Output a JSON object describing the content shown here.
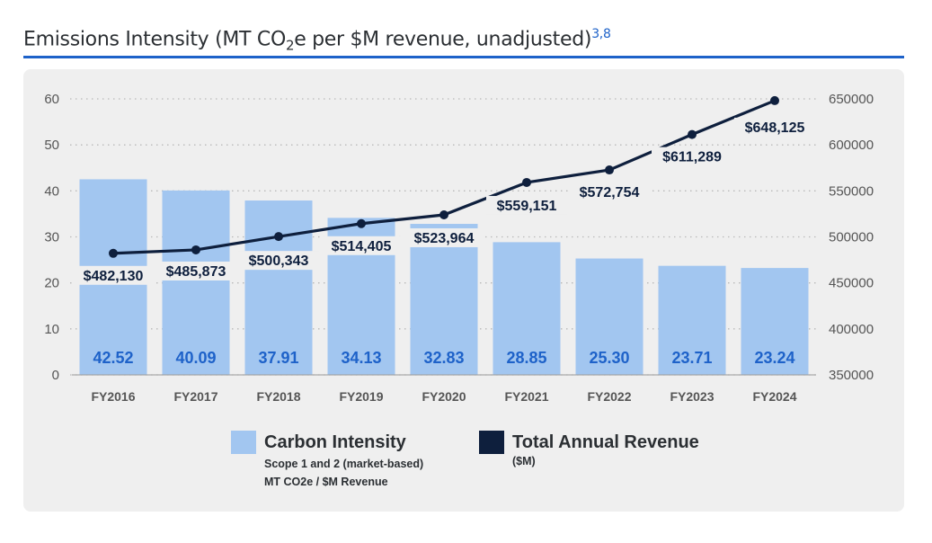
{
  "header": {
    "title_pre": "Emissions Intensity (MT CO",
    "title_sub": "2",
    "title_post": "e per $M revenue, unadjusted)",
    "title_refs": "3,8"
  },
  "colors": {
    "bar": "#a2c6f0",
    "bar_label": "#1e62c9",
    "line": "#0e1f3d",
    "accent_rule": "#1e62c9"
  },
  "chart_data": {
    "type": "bar",
    "categories": [
      "FY2016",
      "FY2017",
      "FY2018",
      "FY2019",
      "FY2020",
      "FY2021",
      "FY2022",
      "FY2023",
      "FY2024"
    ],
    "series": [
      {
        "name": "Carbon Intensity",
        "type": "bar",
        "axis": "left",
        "values": [
          42.52,
          40.09,
          37.91,
          34.13,
          32.83,
          28.85,
          25.3,
          23.71,
          23.24
        ],
        "labels": [
          "42.52",
          "40.09",
          "37.91",
          "34.13",
          "32.83",
          "28.85",
          "25.30",
          "23.71",
          "23.24"
        ]
      },
      {
        "name": "Total Annual Revenue",
        "type": "line",
        "axis": "right",
        "values": [
          482130,
          485873,
          500343,
          514405,
          523964,
          559151,
          572754,
          611289,
          648125
        ],
        "labels": [
          "$482,130",
          "$485,873",
          "$500,343",
          "$514,405",
          "$523,964",
          "$559,151",
          "$572,754",
          "$611,289",
          "$648,125"
        ]
      }
    ],
    "y_left": {
      "range": [
        0,
        60
      ],
      "ticks": [
        "0",
        "10",
        "20",
        "30",
        "40",
        "50",
        "60"
      ]
    },
    "y_right": {
      "range": [
        350000,
        650000
      ],
      "ticks": [
        "350000",
        "400000",
        "450000",
        "500000",
        "550000",
        "600000",
        "650000"
      ]
    },
    "grid": "dotted",
    "legend": [
      {
        "name": "Carbon Intensity",
        "sub1": "Scope 1 and 2 (market-based)",
        "sub2": "MT CO2e / $M Revenue"
      },
      {
        "name": "Total Annual Revenue",
        "sub1": "($M)"
      }
    ],
    "legend_position": "bottom"
  }
}
